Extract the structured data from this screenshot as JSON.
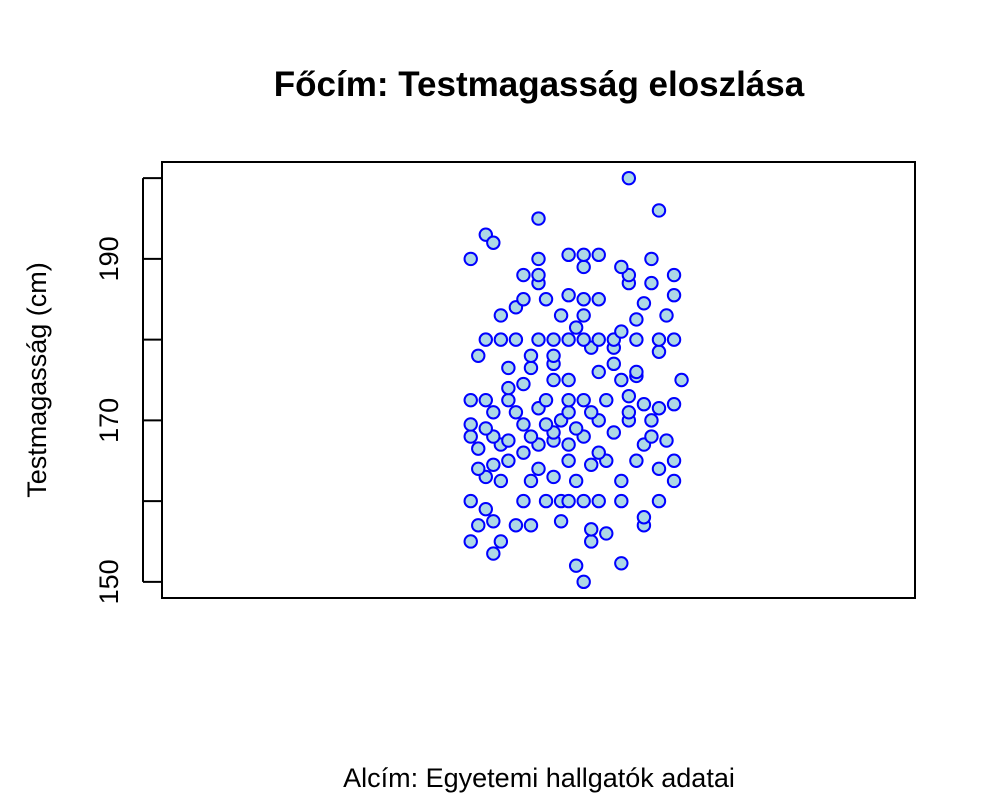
{
  "chart_data": {
    "type": "scatter",
    "title": "Főcím: Testmagasság eloszlása",
    "subtitle": "Alcím: Egyetemi hallgatók adatai",
    "xlabel": "",
    "ylabel": "Testmagasság (cm)",
    "ylim": [
      148,
      202
    ],
    "y_ticks": [
      150,
      170,
      190
    ],
    "y_minor_ticks": [
      150,
      160,
      170,
      180,
      190,
      200
    ],
    "xlim": [
      0.5,
      1.5
    ],
    "x_ticks": [],
    "grid": false,
    "legend": "none",
    "point_fill": "#add8e6",
    "point_stroke": "#0000ff",
    "series": [
      {
        "values": [
          {
            "x": 0.91,
            "y": 155
          },
          {
            "x": 0.94,
            "y": 153.5
          },
          {
            "x": 0.95,
            "y": 155
          },
          {
            "x": 1.06,
            "y": 150
          },
          {
            "x": 1.05,
            "y": 152
          },
          {
            "x": 1.11,
            "y": 152.3
          },
          {
            "x": 1.07,
            "y": 155
          },
          {
            "x": 1.09,
            "y": 156
          },
          {
            "x": 1.07,
            "y": 156.5
          },
          {
            "x": 1.14,
            "y": 157
          },
          {
            "x": 1.14,
            "y": 158
          },
          {
            "x": 0.94,
            "y": 157.5
          },
          {
            "x": 0.92,
            "y": 157
          },
          {
            "x": 0.97,
            "y": 157
          },
          {
            "x": 0.99,
            "y": 157
          },
          {
            "x": 1.03,
            "y": 157.5
          },
          {
            "x": 0.93,
            "y": 159
          },
          {
            "x": 0.91,
            "y": 160
          },
          {
            "x": 0.98,
            "y": 160
          },
          {
            "x": 1.01,
            "y": 160
          },
          {
            "x": 1.03,
            "y": 160
          },
          {
            "x": 1.04,
            "y": 160
          },
          {
            "x": 1.06,
            "y": 160
          },
          {
            "x": 1.08,
            "y": 160
          },
          {
            "x": 1.11,
            "y": 160
          },
          {
            "x": 1.16,
            "y": 160
          },
          {
            "x": 0.93,
            "y": 163
          },
          {
            "x": 0.95,
            "y": 162.5
          },
          {
            "x": 0.99,
            "y": 162.5
          },
          {
            "x": 1.02,
            "y": 163
          },
          {
            "x": 1.05,
            "y": 162.5
          },
          {
            "x": 1.11,
            "y": 162.5
          },
          {
            "x": 1.18,
            "y": 162.5
          },
          {
            "x": 0.92,
            "y": 164
          },
          {
            "x": 0.94,
            "y": 164.5
          },
          {
            "x": 0.96,
            "y": 165
          },
          {
            "x": 1.0,
            "y": 164
          },
          {
            "x": 1.04,
            "y": 165
          },
          {
            "x": 1.07,
            "y": 164.5
          },
          {
            "x": 1.09,
            "y": 165
          },
          {
            "x": 1.13,
            "y": 165
          },
          {
            "x": 1.16,
            "y": 164
          },
          {
            "x": 1.18,
            "y": 165
          },
          {
            "x": 0.92,
            "y": 166.5
          },
          {
            "x": 0.95,
            "y": 167
          },
          {
            "x": 0.98,
            "y": 166
          },
          {
            "x": 1.0,
            "y": 167
          },
          {
            "x": 1.02,
            "y": 167.5
          },
          {
            "x": 1.04,
            "y": 167
          },
          {
            "x": 1.08,
            "y": 166
          },
          {
            "x": 1.14,
            "y": 167
          },
          {
            "x": 1.17,
            "y": 167.5
          },
          {
            "x": 0.91,
            "y": 168
          },
          {
            "x": 0.94,
            "y": 168
          },
          {
            "x": 0.96,
            "y": 167.5
          },
          {
            "x": 0.99,
            "y": 168
          },
          {
            "x": 1.02,
            "y": 168.5
          },
          {
            "x": 1.06,
            "y": 168
          },
          {
            "x": 1.1,
            "y": 168.5
          },
          {
            "x": 1.15,
            "y": 168
          },
          {
            "x": 0.91,
            "y": 169.5
          },
          {
            "x": 0.93,
            "y": 169
          },
          {
            "x": 0.98,
            "y": 169.5
          },
          {
            "x": 1.01,
            "y": 169.5
          },
          {
            "x": 1.03,
            "y": 170
          },
          {
            "x": 1.05,
            "y": 169
          },
          {
            "x": 1.08,
            "y": 170
          },
          {
            "x": 1.12,
            "y": 170
          },
          {
            "x": 1.15,
            "y": 170
          },
          {
            "x": 0.94,
            "y": 171
          },
          {
            "x": 0.97,
            "y": 171
          },
          {
            "x": 1.0,
            "y": 171.5
          },
          {
            "x": 1.04,
            "y": 171
          },
          {
            "x": 1.07,
            "y": 171
          },
          {
            "x": 1.12,
            "y": 171
          },
          {
            "x": 1.16,
            "y": 171.5
          },
          {
            "x": 0.91,
            "y": 172.5
          },
          {
            "x": 0.93,
            "y": 172.5
          },
          {
            "x": 0.96,
            "y": 172.5
          },
          {
            "x": 1.01,
            "y": 172.5
          },
          {
            "x": 1.04,
            "y": 172.5
          },
          {
            "x": 1.06,
            "y": 172.5
          },
          {
            "x": 1.09,
            "y": 172.5
          },
          {
            "x": 1.12,
            "y": 173
          },
          {
            "x": 1.14,
            "y": 172
          },
          {
            "x": 1.18,
            "y": 172
          },
          {
            "x": 0.96,
            "y": 174
          },
          {
            "x": 0.98,
            "y": 174.5
          },
          {
            "x": 1.02,
            "y": 175
          },
          {
            "x": 1.04,
            "y": 175
          },
          {
            "x": 1.11,
            "y": 175
          },
          {
            "x": 1.13,
            "y": 175.5
          },
          {
            "x": 1.19,
            "y": 175
          },
          {
            "x": 0.96,
            "y": 176.5
          },
          {
            "x": 0.99,
            "y": 176.5
          },
          {
            "x": 1.02,
            "y": 177
          },
          {
            "x": 1.08,
            "y": 176
          },
          {
            "x": 1.1,
            "y": 177
          },
          {
            "x": 1.13,
            "y": 176
          },
          {
            "x": 0.92,
            "y": 178
          },
          {
            "x": 0.99,
            "y": 178
          },
          {
            "x": 1.02,
            "y": 178
          },
          {
            "x": 1.07,
            "y": 179
          },
          {
            "x": 1.1,
            "y": 179
          },
          {
            "x": 1.16,
            "y": 178.5
          },
          {
            "x": 0.93,
            "y": 180
          },
          {
            "x": 0.95,
            "y": 180
          },
          {
            "x": 0.97,
            "y": 180
          },
          {
            "x": 1.0,
            "y": 180
          },
          {
            "x": 1.02,
            "y": 180
          },
          {
            "x": 1.04,
            "y": 180
          },
          {
            "x": 1.06,
            "y": 180
          },
          {
            "x": 1.08,
            "y": 180
          },
          {
            "x": 1.1,
            "y": 180
          },
          {
            "x": 1.13,
            "y": 180
          },
          {
            "x": 1.16,
            "y": 180
          },
          {
            "x": 1.18,
            "y": 180
          },
          {
            "x": 1.05,
            "y": 181.5
          },
          {
            "x": 1.11,
            "y": 181
          },
          {
            "x": 0.95,
            "y": 183
          },
          {
            "x": 0.97,
            "y": 184
          },
          {
            "x": 1.03,
            "y": 183
          },
          {
            "x": 1.06,
            "y": 183
          },
          {
            "x": 1.13,
            "y": 182.5
          },
          {
            "x": 1.17,
            "y": 183
          },
          {
            "x": 0.98,
            "y": 185
          },
          {
            "x": 1.01,
            "y": 185
          },
          {
            "x": 1.04,
            "y": 185.5
          },
          {
            "x": 1.06,
            "y": 185
          },
          {
            "x": 1.08,
            "y": 185
          },
          {
            "x": 1.14,
            "y": 184.5
          },
          {
            "x": 1.18,
            "y": 185.5
          },
          {
            "x": 1.0,
            "y": 187
          },
          {
            "x": 1.12,
            "y": 187
          },
          {
            "x": 1.15,
            "y": 187
          },
          {
            "x": 0.98,
            "y": 188
          },
          {
            "x": 1.0,
            "y": 188
          },
          {
            "x": 1.12,
            "y": 188
          },
          {
            "x": 1.18,
            "y": 188
          },
          {
            "x": 1.06,
            "y": 189
          },
          {
            "x": 1.11,
            "y": 189
          },
          {
            "x": 0.91,
            "y": 190
          },
          {
            "x": 1.0,
            "y": 190
          },
          {
            "x": 1.04,
            "y": 190.5
          },
          {
            "x": 1.06,
            "y": 190.5
          },
          {
            "x": 1.08,
            "y": 190.5
          },
          {
            "x": 1.15,
            "y": 190
          },
          {
            "x": 0.93,
            "y": 193
          },
          {
            "x": 0.94,
            "y": 192
          },
          {
            "x": 1.0,
            "y": 195
          },
          {
            "x": 1.16,
            "y": 196
          },
          {
            "x": 1.12,
            "y": 200
          }
        ]
      }
    ]
  }
}
